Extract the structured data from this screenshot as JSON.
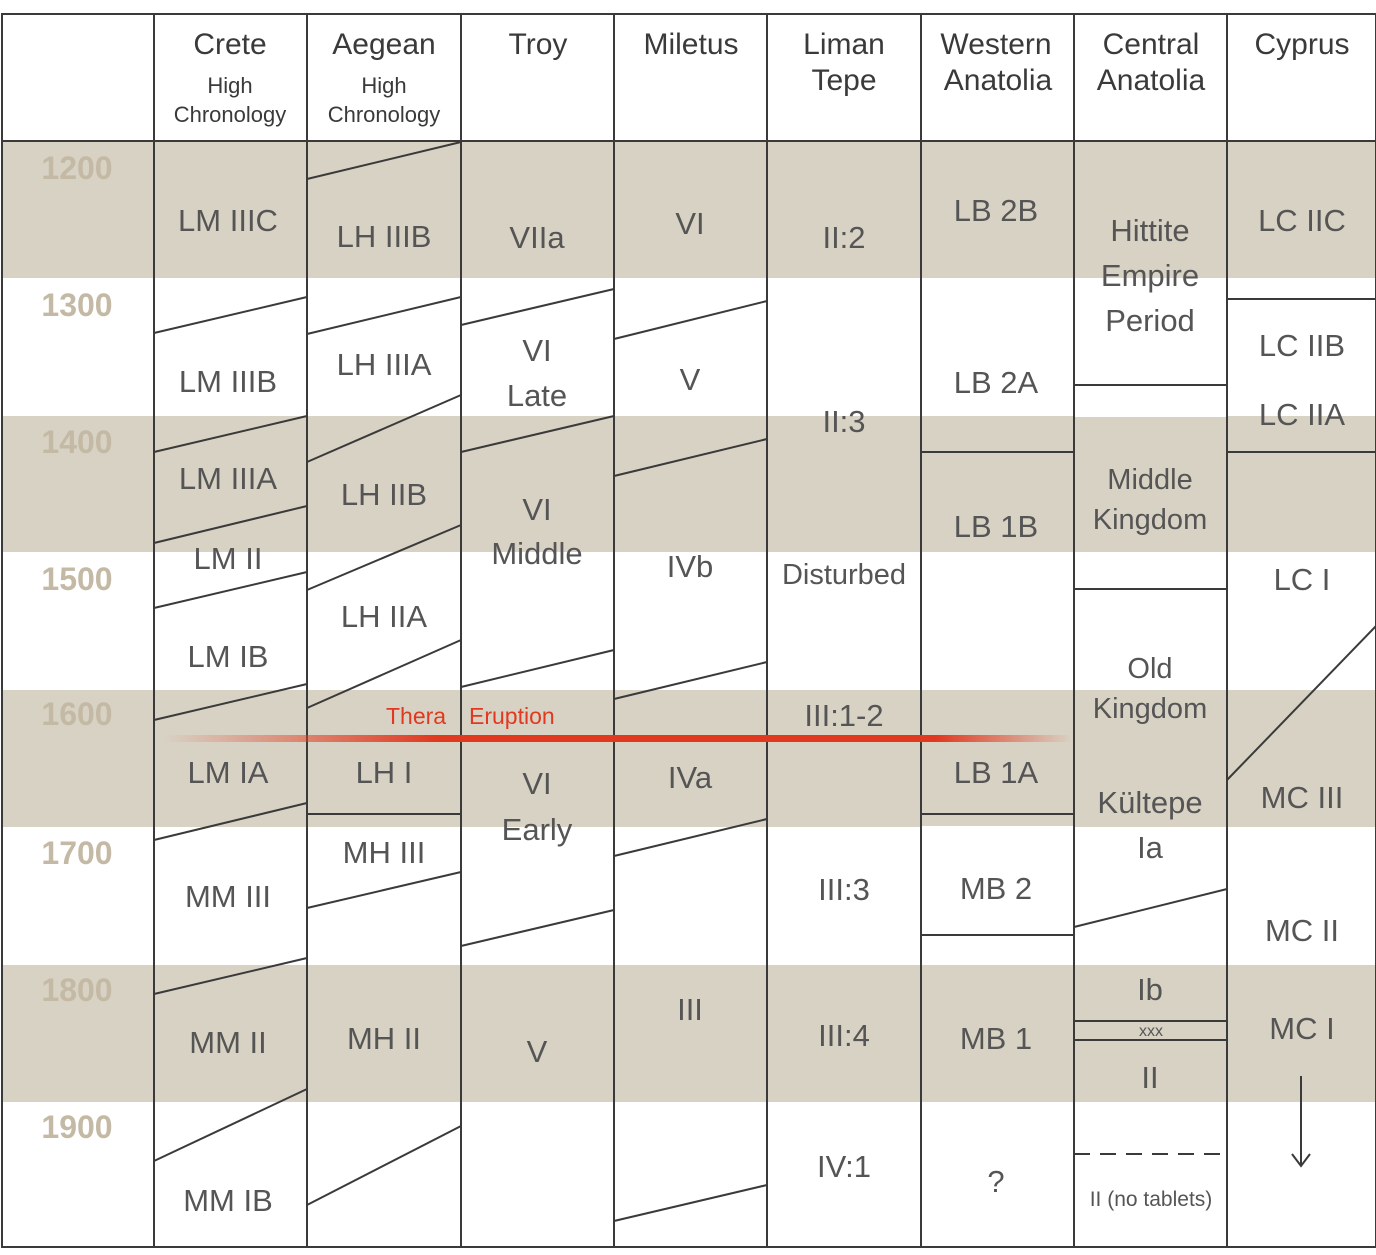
{
  "headers": {
    "crete": [
      "Crete",
      "High",
      "Chronology"
    ],
    "aegean": [
      "Aegean",
      "High",
      "Chronology"
    ],
    "troy": [
      "Troy"
    ],
    "miletus": [
      "Miletus"
    ],
    "liman": [
      "Liman",
      "Tepe"
    ],
    "west": [
      "Western",
      "Anatolia"
    ],
    "central": [
      "Central",
      "Anatolia"
    ],
    "cyprus": [
      "Cyprus"
    ]
  },
  "years": [
    "1200",
    "1300",
    "1400",
    "1500",
    "1600",
    "1700",
    "1800",
    "1900"
  ],
  "periods": {
    "crete": [
      "LM IIIC",
      "LM IIIB",
      "LM IIIA",
      "LM II",
      "LM IB",
      "LM IA",
      "MM III",
      "MM II",
      "MM IB"
    ],
    "aegean": [
      "LH IIIB",
      "LH IIIA",
      "LH IIB",
      "LH IIA",
      "LH I",
      "MH III",
      "MH II"
    ],
    "troy": [
      "VIIa",
      "VI",
      "Late",
      "VI",
      "Middle",
      "VI",
      "Early",
      "V"
    ],
    "miletus": [
      "VI",
      "V",
      "IVb",
      "IVa",
      "III"
    ],
    "liman": [
      "II:2",
      "II:3",
      "Disturbed",
      "III:1-2",
      "III:3",
      "III:4",
      "IV:1"
    ],
    "west": [
      "LB 2B",
      "LB 2A",
      "LB 1B",
      "LB 1A",
      "MB 2",
      "MB 1",
      "?"
    ],
    "central": [
      "Hittite",
      "Empire",
      "Period",
      "Middle",
      "Kingdom",
      "Old",
      "Kingdom",
      "Kültepe",
      "Ia",
      "Ib",
      "xxx",
      "II",
      "II (no tablets)"
    ],
    "cyprus": [
      "LC IIC",
      "LC IIB",
      "LC IIA",
      "LC I",
      "MC III",
      "MC II",
      "MC I"
    ]
  },
  "event": {
    "word1": "Thera",
    "word2": "Eruption"
  },
  "colors": {
    "band": "#d8d2c4",
    "line": "#3a3a3a",
    "year": "#c4b9a4",
    "event": "#e0391f"
  }
}
